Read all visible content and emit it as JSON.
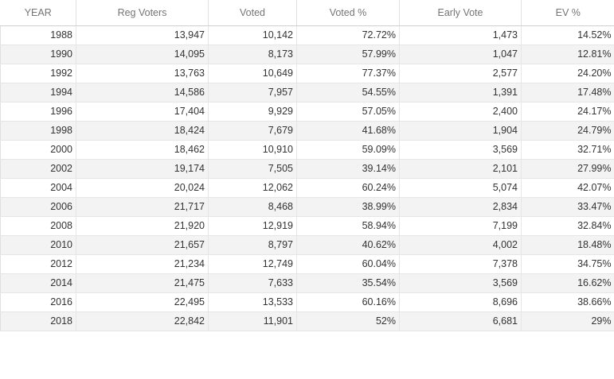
{
  "table": {
    "headers": [
      "YEAR",
      "Reg Voters",
      "Voted",
      "Voted %",
      "Early Vote",
      "EV %"
    ],
    "rows": [
      [
        "1988",
        "13,947",
        "10,142",
        "72.72%",
        "1,473",
        "14.52%"
      ],
      [
        "1990",
        "14,095",
        "8,173",
        "57.99%",
        "1,047",
        "12.81%"
      ],
      [
        "1992",
        "13,763",
        "10,649",
        "77.37%",
        "2,577",
        "24.20%"
      ],
      [
        "1994",
        "14,586",
        "7,957",
        "54.55%",
        "1,391",
        "17.48%"
      ],
      [
        "1996",
        "17,404",
        "9,929",
        "57.05%",
        "2,400",
        "24.17%"
      ],
      [
        "1998",
        "18,424",
        "7,679",
        "41.68%",
        "1,904",
        "24.79%"
      ],
      [
        "2000",
        "18,462",
        "10,910",
        "59.09%",
        "3,569",
        "32.71%"
      ],
      [
        "2002",
        "19,174",
        "7,505",
        "39.14%",
        "2,101",
        "27.99%"
      ],
      [
        "2004",
        "20,024",
        "12,062",
        "60.24%",
        "5,074",
        "42.07%"
      ],
      [
        "2006",
        "21,717",
        "8,468",
        "38.99%",
        "2,834",
        "33.47%"
      ],
      [
        "2008",
        "21,920",
        "12,919",
        "58.94%",
        "7,199",
        "32.84%"
      ],
      [
        "2010",
        "21,657",
        "8,797",
        "40.62%",
        "4,002",
        "18.48%"
      ],
      [
        "2012",
        "21,234",
        "12,749",
        "60.04%",
        "7,378",
        "34.75%"
      ],
      [
        "2014",
        "21,475",
        "7,633",
        "35.54%",
        "3,569",
        "16.62%"
      ],
      [
        "2016",
        "22,495",
        "13,533",
        "60.16%",
        "8,696",
        "38.66%"
      ],
      [
        "2018",
        "22,842",
        "11,901",
        "52%",
        "6,681",
        "29%"
      ]
    ]
  },
  "colors": {
    "header_text": "#757575",
    "cell_text": "#333333",
    "stripe": "#f3f3f3",
    "border": "#e6e6e6"
  }
}
